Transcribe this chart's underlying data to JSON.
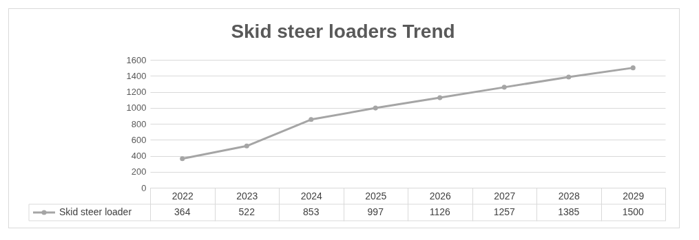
{
  "chart_data": {
    "type": "line",
    "title": "Skid steer loaders Trend",
    "categories": [
      "2022",
      "2023",
      "2024",
      "2025",
      "2026",
      "2027",
      "2028",
      "2029"
    ],
    "series": [
      {
        "name": "Skid steer loader",
        "color": "#a5a5a5",
        "values": [
          364,
          522,
          853,
          997,
          1126,
          1257,
          1385,
          1500
        ]
      }
    ],
    "ylim": [
      0,
      1600
    ],
    "yticks": [
      0,
      200,
      400,
      600,
      800,
      1000,
      1200,
      1400,
      1600
    ],
    "grid": "y",
    "legend": "bottom",
    "marker": "circle",
    "line_style": "solid",
    "data_labels": true
  }
}
